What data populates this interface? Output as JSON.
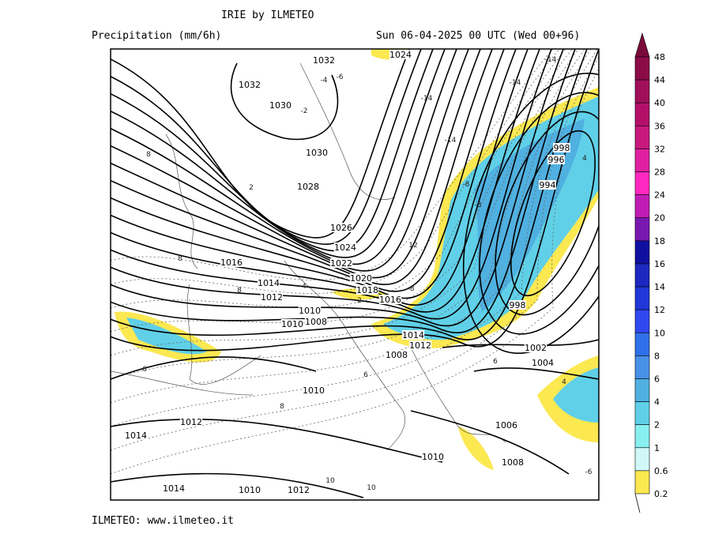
{
  "header": {
    "title": "IRIE by ILMETEO",
    "subtitle": "Precipitation (mm/6h)",
    "date": "Sun 06-04-2025 00 UTC (Wed 00+96)"
  },
  "footer": "ILMETEO: www.ilmeteo.it",
  "map": {
    "field": "precipitation",
    "contours": "sea-level pressure isobars (hPa) and dashed temperature isolines",
    "isobar_labels": [
      "1032",
      "1032",
      "1030",
      "1030",
      "1028",
      "1026",
      "1024",
      "1022",
      "1020",
      "1018",
      "1016",
      "1016",
      "1014",
      "1012",
      "1010",
      "1008",
      "1010",
      "1014",
      "1012",
      "1008",
      "1010",
      "1012",
      "1014",
      "1014",
      "1010",
      "1012",
      "1010",
      "1006",
      "1008",
      "1002",
      "1004",
      "998",
      "996",
      "994",
      "998",
      "1024"
    ],
    "temperature_labels": [
      "-14",
      "-14",
      "-14",
      "-14",
      "-8",
      "-8",
      "-6",
      "-4",
      "-2",
      "2",
      "2",
      "4",
      "6",
      "6",
      "8",
      "8",
      "8",
      "8",
      "10",
      "10",
      "6",
      "4",
      "12",
      "-8",
      "4",
      "-6"
    ]
  },
  "colorbar": {
    "labels": [
      "48",
      "44",
      "40",
      "36",
      "32",
      "28",
      "24",
      "20",
      "18",
      "16",
      "14",
      "12",
      "10",
      "8",
      "6",
      "4",
      "2",
      "1",
      "0.6",
      "0.2"
    ],
    "colors": [
      "#8c0c48",
      "#a00f5a",
      "#b4106a",
      "#c8187e",
      "#e020a0",
      "#ff28c0",
      "#c01cb4",
      "#7818b0",
      "#1010a0",
      "#1c28c0",
      "#2038d8",
      "#3048f0",
      "#3070e8",
      "#4890e8",
      "#50b0e0",
      "#60d0e8",
      "#88f0f0",
      "#d0f8f8",
      "#fce850"
    ],
    "arrow_color": "#7a0a3c"
  }
}
